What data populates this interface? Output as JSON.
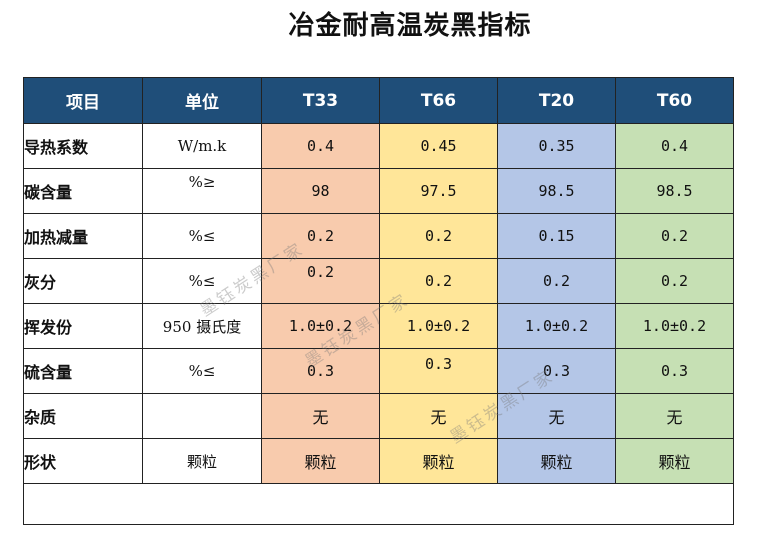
{
  "title": "冶金耐高温炭黑指标",
  "headers": {
    "item": "项目",
    "unit": "单位",
    "grades": [
      "T33",
      "T66",
      "T20",
      "T60"
    ]
  },
  "rows": [
    {
      "label": "导热系数",
      "unit": "W/m.k",
      "values": [
        "0.4",
        "0.45",
        "0.35",
        "0.4"
      ]
    },
    {
      "label": "碳含量",
      "unit": "%≥",
      "values": [
        "98",
        "97.5",
        "98.5",
        "98.5"
      ]
    },
    {
      "label": "加热减量",
      "unit": "%≤",
      "values": [
        "0.2",
        "0.2",
        "0.15",
        "0.2"
      ]
    },
    {
      "label": "灰分",
      "unit": "%≤",
      "values": [
        "0.2",
        "0.2",
        "0.2",
        "0.2"
      ]
    },
    {
      "label": "挥发份",
      "unit": "950 摄氏度",
      "values": [
        "1.0±0.2",
        "1.0±0.2",
        "1.0±0.2",
        "1.0±0.2"
      ]
    },
    {
      "label": "硫含量",
      "unit": "%≤",
      "values": [
        "0.3",
        "0.3",
        "0.3",
        "0.3"
      ]
    },
    {
      "label": "杂质",
      "unit": "",
      "values": [
        "无",
        "无",
        "无",
        "无"
      ]
    },
    {
      "label": "形状",
      "unit": "",
      "values": [
        "颗粒",
        "颗粒",
        "颗粒",
        "颗粒"
      ]
    }
  ],
  "shape_unit": "颗粒",
  "watermark": "墨钰炭黑厂家",
  "colors": {
    "header_bg": "#1f4e79",
    "header_text": "#ffffff",
    "T33": "#f8cbad",
    "T66": "#ffe699",
    "T20": "#b4c6e7",
    "T60": "#c6e0b4"
  }
}
